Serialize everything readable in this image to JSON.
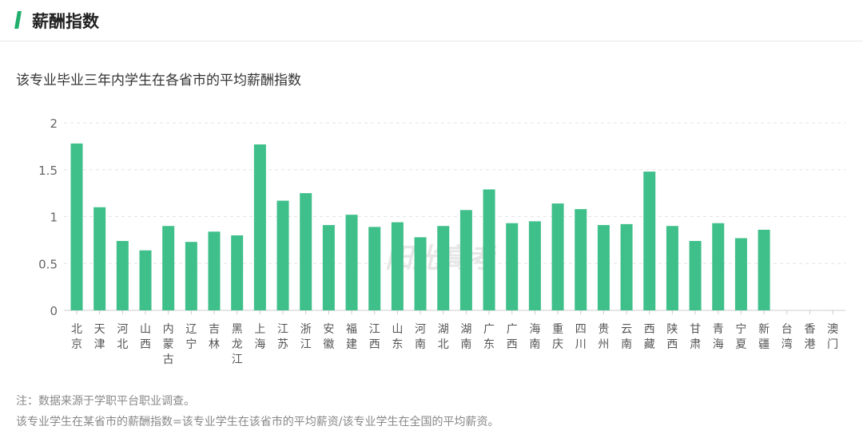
{
  "header": {
    "title": "薪酬指数"
  },
  "chart_data": {
    "type": "bar",
    "title": "该专业毕业三年内学生在各省市的平均薪酬指数",
    "xlabel": "",
    "ylabel": "",
    "ylim": [
      0,
      2
    ],
    "yticks": [
      "0",
      "0.5",
      "1",
      "1.5",
      "2"
    ],
    "grid": true,
    "color": "#3fbf8a",
    "watermark": "阳光高考",
    "categories": [
      "北京",
      "天津",
      "河北",
      "山西",
      "内蒙古",
      "辽宁",
      "吉林",
      "黑龙江",
      "上海",
      "江苏",
      "浙江",
      "安徽",
      "福建",
      "江西",
      "山东",
      "河南",
      "湖北",
      "湖南",
      "广东",
      "广西",
      "海南",
      "重庆",
      "四川",
      "贵州",
      "云南",
      "西藏",
      "陕西",
      "甘肃",
      "青海",
      "宁夏",
      "新疆",
      "台湾",
      "香港",
      "澳门"
    ],
    "values": [
      1.78,
      1.1,
      0.74,
      0.64,
      0.9,
      0.73,
      0.84,
      0.8,
      1.77,
      1.17,
      1.25,
      0.91,
      1.02,
      0.89,
      0.94,
      0.78,
      0.9,
      1.07,
      1.29,
      0.93,
      0.95,
      1.14,
      1.08,
      0.91,
      0.92,
      1.48,
      0.9,
      0.74,
      0.93,
      0.77,
      0.86,
      null,
      null,
      null
    ]
  },
  "notes": [
    "注：数据来源于学职平台职业调查。",
    "该专业学生在某省市的薪酬指数=该专业学生在该省市的平均薪资/该专业学生在全国的平均薪资。"
  ]
}
